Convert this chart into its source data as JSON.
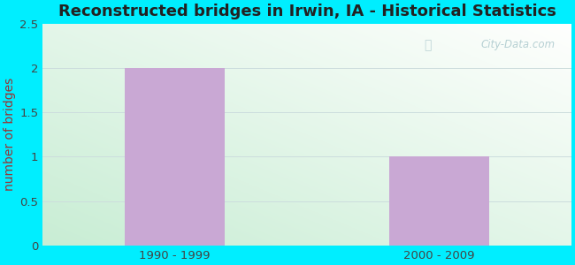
{
  "title": "Reconstructed bridges in Irwin, IA - Historical Statistics",
  "categories": [
    "1990 - 1999",
    "2000 - 2009"
  ],
  "values": [
    2,
    1
  ],
  "bar_color": "#c9a8d4",
  "bar_width": 0.38,
  "ylabel": "number of bridges",
  "ylim": [
    0,
    2.5
  ],
  "yticks": [
    0,
    0.5,
    1,
    1.5,
    2,
    2.5
  ],
  "title_fontsize": 13,
  "ylabel_fontsize": 10,
  "tick_fontsize": 9.5,
  "outer_bg": "#00eeff",
  "watermark": "City-Data.com",
  "bg_gradient_left": "#c8edd4",
  "bg_gradient_right": "#f0faf8",
  "grid_color": "#ddeeee",
  "title_color": "#222222",
  "ylabel_color": "#993333",
  "tick_color": "#444444",
  "watermark_color": "#aac8cc"
}
